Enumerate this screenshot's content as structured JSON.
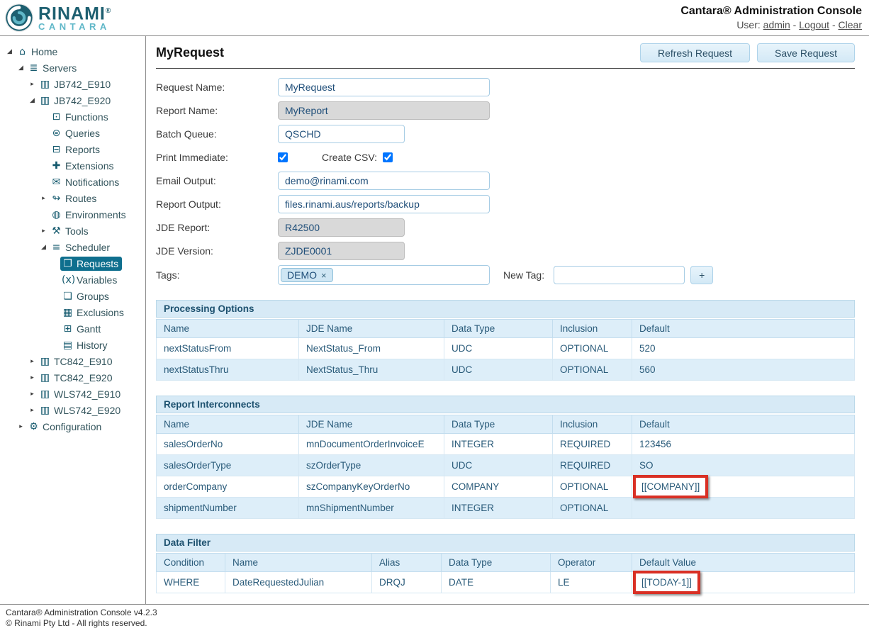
{
  "header": {
    "logo": {
      "primary": "RINAMI",
      "registered": "®",
      "secondary": "CANTARA"
    },
    "title": "Cantara® Administration Console",
    "user_label": "User:",
    "user_name": "admin",
    "sep1": " - ",
    "logout": "Logout",
    "sep2": " - ",
    "clear": "Clear"
  },
  "colors": {
    "sidebar_selected": "#0f6f8e",
    "icon_teal": "#155a6e",
    "logo_dark": "#1d5f70",
    "logo_light": "#5fb7c8",
    "table_header_bg": "#d7eaf6",
    "table_alt_row_bg": "#ddeef9",
    "button_bg": "#d9edf8",
    "annotation_red": "#d93025"
  },
  "sidebar": {
    "items": [
      {
        "label": "Home",
        "icon": "home-icon",
        "glyph": "⌂",
        "level": 0,
        "expander": "expanded"
      },
      {
        "label": "Servers",
        "icon": "servers-icon",
        "glyph": "≣",
        "level": 1,
        "expander": "expanded"
      },
      {
        "label": "JB742_E910",
        "icon": "server-icon",
        "glyph": "▥",
        "level": 2,
        "expander": "collapsed"
      },
      {
        "label": "JB742_E920",
        "icon": "server-icon",
        "glyph": "▥",
        "level": 2,
        "expander": "expanded"
      },
      {
        "label": "Functions",
        "icon": "functions-icon",
        "glyph": "⊡",
        "level": 3,
        "expander": null
      },
      {
        "label": "Queries",
        "icon": "queries-icon",
        "glyph": "⊜",
        "level": 3,
        "expander": null
      },
      {
        "label": "Reports",
        "icon": "reports-icon",
        "glyph": "⊟",
        "level": 3,
        "expander": null
      },
      {
        "label": "Extensions",
        "icon": "extensions-icon",
        "glyph": "✚",
        "level": 3,
        "expander": null
      },
      {
        "label": "Notifications",
        "icon": "notifications-icon",
        "glyph": "✉",
        "level": 3,
        "expander": null
      },
      {
        "label": "Routes",
        "icon": "routes-icon",
        "glyph": "↬",
        "level": 3,
        "expander": "collapsed"
      },
      {
        "label": "Environments",
        "icon": "environments-icon",
        "glyph": "◍",
        "level": 3,
        "expander": null
      },
      {
        "label": "Tools",
        "icon": "tools-icon",
        "glyph": "⚒",
        "level": 3,
        "expander": "collapsed"
      },
      {
        "label": "Scheduler",
        "icon": "scheduler-icon",
        "glyph": "≡",
        "level": 3,
        "expander": "expanded"
      },
      {
        "label": "Requests",
        "icon": "requests-icon",
        "glyph": "❐",
        "level": 4,
        "expander": null,
        "selected": true
      },
      {
        "label": "Variables",
        "icon": "variables-icon",
        "glyph": "(x)",
        "level": 4,
        "expander": null
      },
      {
        "label": "Groups",
        "icon": "groups-icon",
        "glyph": "❏",
        "level": 4,
        "expander": null
      },
      {
        "label": "Exclusions",
        "icon": "exclusions-icon",
        "glyph": "▦",
        "level": 4,
        "expander": null
      },
      {
        "label": "Gantt",
        "icon": "gantt-icon",
        "glyph": "⊞",
        "level": 4,
        "expander": null
      },
      {
        "label": "History",
        "icon": "history-icon",
        "glyph": "▤",
        "level": 4,
        "expander": null
      },
      {
        "label": "TC842_E910",
        "icon": "server-icon",
        "glyph": "▥",
        "level": 2,
        "expander": "collapsed"
      },
      {
        "label": "TC842_E920",
        "icon": "server-icon",
        "glyph": "▥",
        "level": 2,
        "expander": "collapsed"
      },
      {
        "label": "WLS742_E910",
        "icon": "server-icon",
        "glyph": "▥",
        "level": 2,
        "expander": "collapsed"
      },
      {
        "label": "WLS742_E920",
        "icon": "server-icon",
        "glyph": "▥",
        "level": 2,
        "expander": "collapsed"
      },
      {
        "label": "Configuration",
        "icon": "configuration-icon",
        "glyph": "⚙",
        "level": 1,
        "expander": "collapsed"
      }
    ]
  },
  "main": {
    "title": "MyRequest",
    "buttons": {
      "refresh": "Refresh Request",
      "save": "Save Request"
    },
    "form": {
      "request_name": {
        "label": "Request Name:",
        "value": "MyRequest"
      },
      "report_name": {
        "label": "Report Name:",
        "value": "MyReport",
        "disabled": true
      },
      "batch_queue": {
        "label": "Batch Queue:",
        "value": "QSCHD"
      },
      "print_immediate": {
        "label": "Print Immediate:",
        "checked": true
      },
      "create_csv": {
        "label": "Create CSV:",
        "checked": true
      },
      "email_output": {
        "label": "Email Output:",
        "value": "demo@rinami.com"
      },
      "report_output": {
        "label": "Report Output:",
        "value": "files.rinami.aus/reports/backup"
      },
      "jde_report": {
        "label": "JDE Report:",
        "value": "R42500",
        "disabled": true
      },
      "jde_version": {
        "label": "JDE Version:",
        "value": "ZJDE0001",
        "disabled": true
      },
      "tags": {
        "label": "Tags:",
        "chips": [
          {
            "text": "DEMO",
            "remove_glyph": "×"
          }
        ]
      },
      "new_tag": {
        "label": "New Tag:",
        "value": "",
        "add_label": "+"
      }
    },
    "tables": [
      {
        "title": "Processing Options",
        "columns": [
          "Name",
          "JDE Name",
          "Data Type",
          "Inclusion",
          "Default"
        ],
        "rows": [
          [
            "nextStatusFrom",
            "NextStatus_From",
            "UDC",
            "OPTIONAL",
            "520"
          ],
          [
            "nextStatusThru",
            "NextStatus_Thru",
            "UDC",
            "OPTIONAL",
            "560"
          ]
        ],
        "highlights": []
      },
      {
        "title": "Report Interconnects",
        "columns": [
          "Name",
          "JDE Name",
          "Data Type",
          "Inclusion",
          "Default"
        ],
        "rows": [
          [
            "salesOrderNo",
            "mnDocumentOrderInvoiceE",
            "INTEGER",
            "REQUIRED",
            "123456"
          ],
          [
            "salesOrderType",
            "szOrderType",
            "UDC",
            "REQUIRED",
            "SO"
          ],
          [
            "orderCompany",
            "szCompanyKeyOrderNo",
            "COMPANY",
            "OPTIONAL",
            "[[COMPANY]]"
          ],
          [
            "shipmentNumber",
            "mnShipmentNumber",
            "INTEGER",
            "OPTIONAL",
            ""
          ]
        ],
        "highlights": [
          [
            2,
            4
          ]
        ]
      },
      {
        "title": "Data Filter",
        "columns": [
          "Condition",
          "Name",
          "Alias",
          "Data Type",
          "Operator",
          "Default Value"
        ],
        "rows": [
          [
            "WHERE",
            "DateRequestedJulian",
            "DRQJ",
            "DATE",
            "LE",
            "[[TODAY-1]]"
          ]
        ],
        "highlights": [
          [
            0,
            5
          ]
        ]
      }
    ]
  },
  "footer": {
    "line1": "Cantara® Administration Console v4.2.3",
    "line2": "© Rinami Pty Ltd - All rights reserved."
  }
}
